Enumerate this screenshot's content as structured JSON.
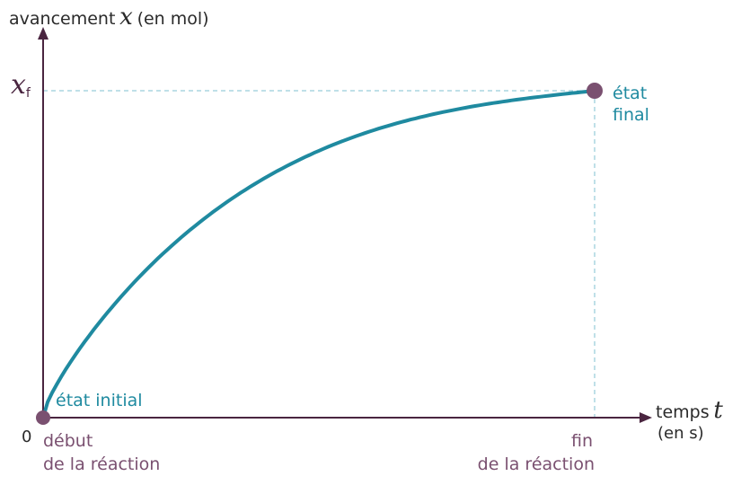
{
  "colors": {
    "axis": "#4a2540",
    "curve": "#1f8aa0",
    "point": "#7a5070",
    "label_axis": "#2a2a2a",
    "label_teal": "#1f8aa0",
    "label_plum": "#7a5070",
    "dashed": "#7fc2d2"
  },
  "chart_data": {
    "type": "line",
    "xlabel_prefix": "temps",
    "xlabel_var": "t",
    "xlabel_unit": "(en s)",
    "ylabel_prefix": "avancement",
    "ylabel_var": "x",
    "ylabel_unit": "(en mol)",
    "y_tick_var": "x",
    "y_tick_sub": "f",
    "origin_label": "0",
    "ylim": [
      0,
      1.06
    ],
    "xlim": [
      0,
      1.08
    ],
    "series": [
      {
        "x": [
          0,
          0.02,
          0.05,
          0.1,
          0.15,
          0.2,
          0.3,
          0.4,
          0.5,
          0.6,
          0.7,
          0.8,
          0.9,
          1.0
        ],
        "values": [
          0,
          0.16,
          0.28,
          0.4,
          0.49,
          0.57,
          0.69,
          0.79,
          0.86,
          0.91,
          0.95,
          0.975,
          0.99,
          1.0
        ]
      }
    ],
    "points": [
      {
        "x": 0,
        "y": 0,
        "label": "état initial"
      },
      {
        "x": 1,
        "y": 1,
        "label_line1": "état",
        "label_line2": "final"
      }
    ],
    "annotations": {
      "start_line1": "début",
      "start_line2": "de la réaction",
      "end_line1": "fin",
      "end_line2": "de la réaction"
    },
    "grid": false
  }
}
